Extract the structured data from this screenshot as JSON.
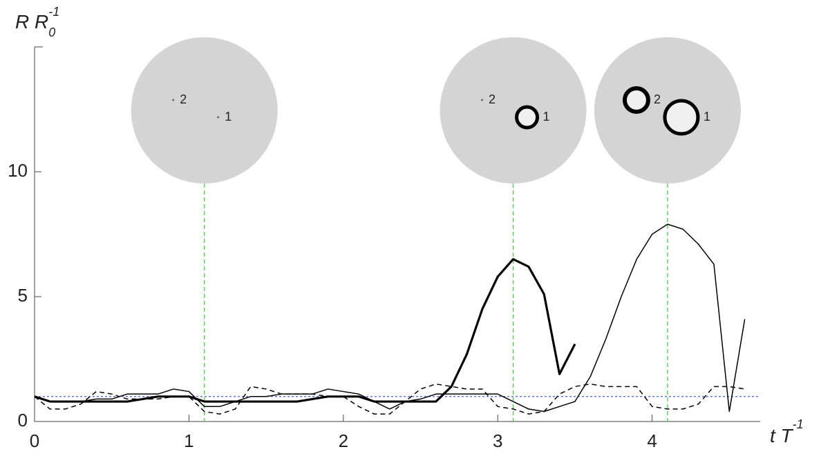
{
  "chart_data": {
    "type": "line",
    "x_label": {
      "main": "t T",
      "sup": "-1"
    },
    "y_label": {
      "main": "R R",
      "sub": "0",
      "sup": "-1"
    },
    "x": [
      0,
      0.1,
      0.2,
      0.3,
      0.4,
      0.5,
      0.6,
      0.7,
      0.8,
      0.9,
      1,
      1.1,
      1.2,
      1.3,
      1.4,
      1.5,
      1.6,
      1.7,
      1.8,
      1.9,
      2,
      2.1,
      2.2,
      2.3,
      2.4,
      2.5,
      2.6,
      2.7,
      2.8,
      2.9,
      3,
      3.1,
      3.2,
      3.3,
      3.4,
      3.5,
      3.6,
      3.7,
      3.8,
      3.9,
      4,
      4.1,
      4.2,
      4.3,
      4.4,
      4.5,
      4.6
    ],
    "series": [
      {
        "color": "#000000",
        "style": "thick",
        "values": [
          1.0,
          0.8,
          0.8,
          0.8,
          0.8,
          0.8,
          0.8,
          0.9,
          1.0,
          1.0,
          1.0,
          0.8,
          0.8,
          0.8,
          0.8,
          0.8,
          0.8,
          0.8,
          0.9,
          1.0,
          1.0,
          1.0,
          0.8,
          0.8,
          0.8,
          0.8,
          0.8,
          1.4,
          2.7,
          4.5,
          5.8,
          6.5,
          6.2,
          5.1,
          1.9,
          3.1,
          null,
          null,
          null,
          null,
          null,
          null,
          null,
          null,
          null,
          null,
          null
        ]
      },
      {
        "color": "#000000",
        "style": "thin",
        "values": [
          1.0,
          0.8,
          0.8,
          0.8,
          0.9,
          0.9,
          1.1,
          1.1,
          1.1,
          1.3,
          1.2,
          0.6,
          0.6,
          0.8,
          1.0,
          1.0,
          1.1,
          1.1,
          1.1,
          1.3,
          1.2,
          1.1,
          0.8,
          0.5,
          0.8,
          0.9,
          1.1,
          1.1,
          1.1,
          1.1,
          1.1,
          0.8,
          0.5,
          0.4,
          0.6,
          0.8,
          1.8,
          3.3,
          5.0,
          6.5,
          7.5,
          7.9,
          7.7,
          7.1,
          6.3,
          0.4,
          4.1
        ]
      },
      {
        "color": "#000000",
        "style": "dashed",
        "values": [
          1.0,
          0.5,
          0.5,
          0.7,
          1.2,
          1.1,
          0.9,
          0.9,
          0.9,
          1.0,
          1.0,
          0.4,
          0.3,
          0.5,
          1.4,
          1.3,
          1.1,
          1.1,
          1.1,
          1.0,
          1.0,
          0.6,
          0.3,
          0.3,
          0.8,
          1.3,
          1.5,
          1.4,
          1.3,
          1.3,
          0.6,
          0.5,
          0.3,
          0.4,
          1.1,
          1.4,
          1.5,
          1.4,
          1.4,
          1.4,
          0.6,
          0.5,
          0.5,
          0.7,
          1.4,
          1.4,
          1.3
        ]
      }
    ],
    "reference_y": 1,
    "reference_color": "#3344cc",
    "markers_x": [
      1.1,
      3.1,
      4.1
    ],
    "marker_color": "#33cc33",
    "insets": [
      {
        "bubble_labels": [
          "2",
          "1"
        ]
      },
      {
        "bubble_labels": [
          "2",
          "1"
        ]
      },
      {
        "bubble_labels": [
          "2",
          "1"
        ]
      }
    ],
    "xlim": [
      0,
      4.7
    ],
    "ylim": [
      0,
      15
    ],
    "xticks": [
      0,
      1,
      2,
      3,
      4
    ],
    "yticks": [
      0,
      5,
      10
    ]
  }
}
